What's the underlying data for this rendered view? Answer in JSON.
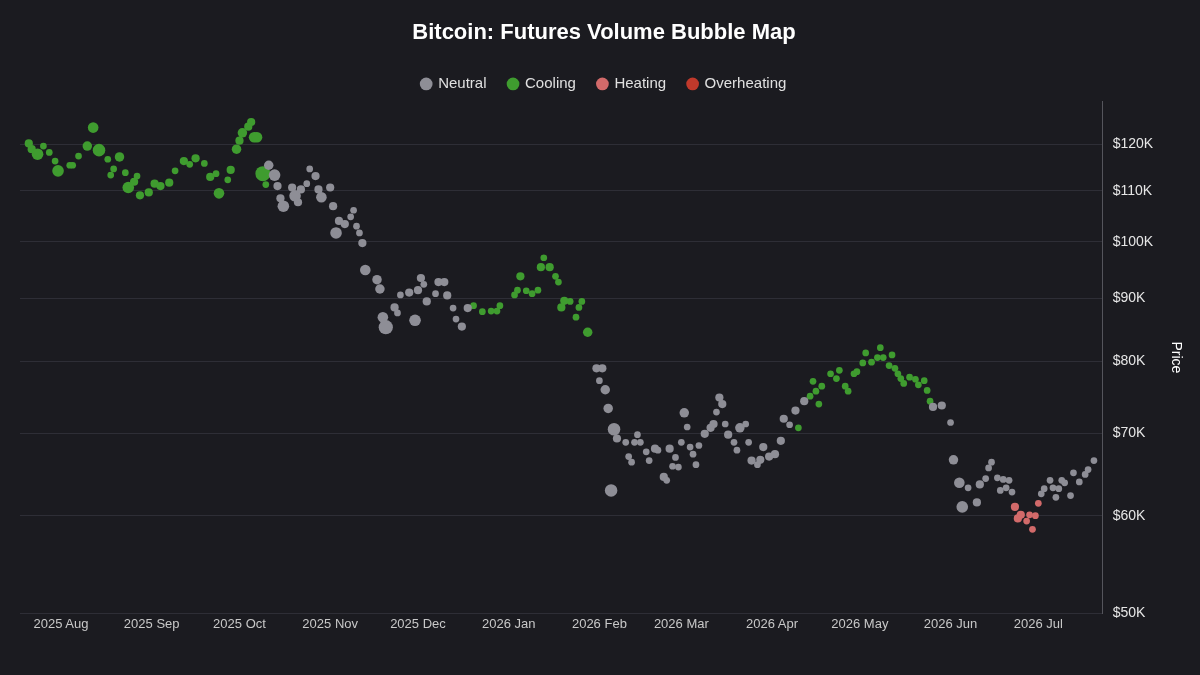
{
  "chart_data": {
    "type": "bubble",
    "title": "Bitcoin: Futures Volume Bubble Map",
    "ylabel": "Price",
    "xlim": [
      "2025-07-18",
      "2026-07-23"
    ],
    "xticks": [
      {
        "value": "2025-08-01",
        "label": "2025 Aug"
      },
      {
        "value": "2025-09-01",
        "label": "2025 Sep"
      },
      {
        "value": "2025-10-01",
        "label": "2025 Oct"
      },
      {
        "value": "2025-11-01",
        "label": "2025 Nov"
      },
      {
        "value": "2025-12-01",
        "label": "2025 Dec"
      },
      {
        "value": "2026-01-01",
        "label": "2026 Jan"
      },
      {
        "value": "2026-02-01",
        "label": "2026 Feb"
      },
      {
        "value": "2026-03-01",
        "label": "2026 Mar"
      },
      {
        "value": "2026-04-01",
        "label": "2026 Apr"
      },
      {
        "value": "2026-05-01",
        "label": "2026 May"
      },
      {
        "value": "2026-06-01",
        "label": "2026 Jun"
      },
      {
        "value": "2026-07-01",
        "label": "2026 Jul"
      }
    ],
    "ylim": [
      50000,
      130000
    ],
    "yticks": [
      {
        "value": 50000,
        "label": "$50K"
      },
      {
        "value": 60000,
        "label": "$60K"
      },
      {
        "value": 70000,
        "label": "$70K"
      },
      {
        "value": 80000,
        "label": "$80K"
      },
      {
        "value": 90000,
        "label": "$90K"
      },
      {
        "value": 100000,
        "label": "$100K"
      },
      {
        "value": 110000,
        "label": "$110K"
      },
      {
        "value": 120000,
        "label": "$120K"
      }
    ],
    "log": "y",
    "grid": "y",
    "legend": "top",
    "series": [
      {
        "name": "Neutral",
        "color": "#8e8e96",
        "x": [
          "2025-10-11",
          "2025-10-13",
          "2025-10-14",
          "2025-10-15",
          "2025-10-16",
          "2025-10-19",
          "2025-10-20",
          "2025-10-21",
          "2025-10-22",
          "2025-10-24",
          "2025-10-25",
          "2025-10-27",
          "2025-10-28",
          "2025-10-29",
          "2025-11-01",
          "2025-11-02",
          "2025-11-03",
          "2025-11-04",
          "2025-11-06",
          "2025-11-08",
          "2025-11-09",
          "2025-11-10",
          "2025-11-11",
          "2025-11-12",
          "2025-11-13",
          "2025-11-17",
          "2025-11-18",
          "2025-11-19",
          "2025-11-20",
          "2025-11-23",
          "2025-11-24",
          "2025-11-25",
          "2025-11-28",
          "2025-11-30",
          "2025-12-01",
          "2025-12-02",
          "2025-12-03",
          "2025-12-04",
          "2025-12-07",
          "2025-12-08",
          "2025-12-10",
          "2025-12-11",
          "2025-12-13",
          "2025-12-14",
          "2025-12-16",
          "2025-12-18",
          "2026-01-31",
          "2026-02-01",
          "2026-02-02",
          "2026-02-03",
          "2026-02-04",
          "2026-02-05",
          "2026-02-06",
          "2026-02-07",
          "2026-02-10",
          "2026-02-11",
          "2026-02-12",
          "2026-02-13",
          "2026-02-14",
          "2026-02-15",
          "2026-02-17",
          "2026-02-18",
          "2026-02-20",
          "2026-02-21",
          "2026-02-23",
          "2026-02-24",
          "2026-02-25",
          "2026-02-26",
          "2026-02-27",
          "2026-02-28",
          "2026-03-01",
          "2026-03-02",
          "2026-03-03",
          "2026-03-04",
          "2026-03-05",
          "2026-03-06",
          "2026-03-07",
          "2026-03-09",
          "2026-03-11",
          "2026-03-12",
          "2026-03-13",
          "2026-03-14",
          "2026-03-15",
          "2026-03-16",
          "2026-03-17",
          "2026-03-19",
          "2026-03-20",
          "2026-03-21",
          "2026-03-23",
          "2026-03-24",
          "2026-03-25",
          "2026-03-27",
          "2026-03-28",
          "2026-03-29",
          "2026-03-31",
          "2026-04-02",
          "2026-04-04",
          "2026-04-05",
          "2026-04-07",
          "2026-04-09",
          "2026-04-12",
          "2026-05-26",
          "2026-05-29",
          "2026-06-01",
          "2026-06-02",
          "2026-06-04",
          "2026-06-05",
          "2026-06-07",
          "2026-06-10",
          "2026-06-11",
          "2026-06-13",
          "2026-06-14",
          "2026-06-15",
          "2026-06-17",
          "2026-06-18",
          "2026-06-19",
          "2026-06-20",
          "2026-06-21",
          "2026-06-22",
          "2026-07-02",
          "2026-07-03",
          "2026-07-05",
          "2026-07-06",
          "2026-07-07",
          "2026-07-08",
          "2026-07-09",
          "2026-07-10",
          "2026-07-12",
          "2026-07-13",
          "2026-07-15",
          "2026-07-17",
          "2026-07-18",
          "2026-07-20"
        ],
        "values": [
          115400,
          113300,
          111000,
          108500,
          106900,
          110700,
          109000,
          107700,
          110300,
          111500,
          114600,
          113100,
          110300,
          108700,
          110700,
          106900,
          101700,
          104000,
          103400,
          104800,
          106100,
          103000,
          101700,
          99800,
          94900,
          93200,
          91600,
          86900,
          85300,
          88500,
          87600,
          90600,
          91000,
          86400,
          91400,
          93500,
          92400,
          89500,
          90800,
          92800,
          92800,
          90500,
          88400,
          86600,
          85400,
          88400,
          79000,
          77200,
          79000,
          75900,
          73300,
          62900,
          70500,
          69300,
          68800,
          67000,
          66300,
          68800,
          69800,
          68800,
          67600,
          66500,
          68000,
          67800,
          64500,
          64100,
          68000,
          65800,
          66900,
          65700,
          68800,
          72700,
          70800,
          68200,
          67300,
          66000,
          68400,
          69900,
          70700,
          71200,
          72800,
          74800,
          73900,
          71200,
          69800,
          68800,
          67800,
          70700,
          71200,
          68800,
          66500,
          66000,
          66600,
          68200,
          67000,
          67300,
          69000,
          71900,
          71100,
          73000,
          74300,
          73500,
          73700,
          71400,
          66600,
          63800,
          61000,
          63200,
          61500,
          63600,
          64300,
          65600,
          66300,
          64400,
          62900,
          64200,
          63200,
          64100,
          62700,
          62500,
          63100,
          64100,
          63200,
          62100,
          63100,
          64100,
          63800,
          62300,
          65000,
          63900,
          64800,
          65400,
          66500
        ],
        "sizes": [
          0.4,
          0.6,
          0.3,
          0.3,
          0.6,
          0.3,
          0.6,
          0.3,
          0.3,
          0.2,
          0.2,
          0.3,
          0.3,
          0.5,
          0.3,
          0.3,
          0.6,
          0.3,
          0.3,
          0.2,
          0.2,
          0.2,
          0.2,
          0.3,
          0.5,
          0.4,
          0.4,
          0.5,
          0.9,
          0.3,
          0.2,
          0.2,
          0.3,
          0.6,
          0.3,
          0.3,
          0.2,
          0.3,
          0.2,
          0.3,
          0.3,
          0.3,
          0.2,
          0.2,
          0.3,
          0.3,
          0.3,
          0.2,
          0.3,
          0.4,
          0.4,
          0.7,
          0.7,
          0.3,
          0.2,
          0.2,
          0.2,
          0.2,
          0.2,
          0.2,
          0.2,
          0.2,
          0.3,
          0.2,
          0.3,
          0.2,
          0.3,
          0.2,
          0.2,
          0.2,
          0.2,
          0.4,
          0.2,
          0.2,
          0.2,
          0.2,
          0.2,
          0.3,
          0.3,
          0.3,
          0.2,
          0.3,
          0.3,
          0.2,
          0.3,
          0.2,
          0.2,
          0.4,
          0.2,
          0.2,
          0.3,
          0.2,
          0.3,
          0.3,
          0.3,
          0.3,
          0.3,
          0.3,
          0.2,
          0.3,
          0.3,
          0.3,
          0.3,
          0.2,
          0.4,
          0.5,
          0.6,
          0.2,
          0.3,
          0.3,
          0.2,
          0.2,
          0.2,
          0.2,
          0.2,
          0.2,
          0.2,
          0.2,
          0.2,
          0.2,
          0.2,
          0.2,
          0.2,
          0.2,
          0.2,
          0.2,
          0.2,
          0.2,
          0.2,
          0.2,
          0.2,
          0.2,
          0.2
        ]
      },
      {
        "name": "Cooling",
        "color": "#3f9c2f",
        "x": [
          "2025-07-21",
          "2025-07-22",
          "2025-07-24",
          "2025-07-26",
          "2025-07-28",
          "2025-07-30",
          "2025-07-31",
          "2025-08-04",
          "2025-08-05",
          "2025-08-07",
          "2025-08-10",
          "2025-08-12",
          "2025-08-14",
          "2025-08-17",
          "2025-08-18",
          "2025-08-19",
          "2025-08-21",
          "2025-08-23",
          "2025-08-24",
          "2025-08-26",
          "2025-08-27",
          "2025-08-28",
          "2025-08-31",
          "2025-09-02",
          "2025-09-04",
          "2025-09-07",
          "2025-09-09",
          "2025-09-12",
          "2025-09-14",
          "2025-09-16",
          "2025-09-19",
          "2025-09-21",
          "2025-09-23",
          "2025-09-24",
          "2025-09-27",
          "2025-09-28",
          "2025-09-30",
          "2025-10-01",
          "2025-10-02",
          "2025-10-04",
          "2025-10-05",
          "2025-10-06",
          "2025-10-07",
          "2025-10-09",
          "2025-10-10",
          "2025-12-20",
          "2025-12-23",
          "2025-12-26",
          "2025-12-28",
          "2025-12-29",
          "2026-01-03",
          "2026-01-04",
          "2026-01-05",
          "2026-01-07",
          "2026-01-09",
          "2026-01-11",
          "2026-01-12",
          "2026-01-13",
          "2026-01-15",
          "2026-01-17",
          "2026-01-18",
          "2026-01-19",
          "2026-01-20",
          "2026-01-22",
          "2026-01-24",
          "2026-01-25",
          "2026-01-26",
          "2026-01-28",
          "2026-04-10",
          "2026-04-14",
          "2026-04-15",
          "2026-04-16",
          "2026-04-17",
          "2026-04-18",
          "2026-04-21",
          "2026-04-23",
          "2026-04-24",
          "2026-04-26",
          "2026-04-27",
          "2026-04-29",
          "2026-04-30",
          "2026-05-02",
          "2026-05-03",
          "2026-05-05",
          "2026-05-07",
          "2026-05-08",
          "2026-05-09",
          "2026-05-11",
          "2026-05-12",
          "2026-05-13",
          "2026-05-14",
          "2026-05-15",
          "2026-05-16",
          "2026-05-18",
          "2026-05-20",
          "2026-05-21",
          "2026-05-23",
          "2026-05-24",
          "2026-05-25"
        ],
        "values": [
          120200,
          118900,
          117800,
          119600,
          118200,
          116300,
          114200,
          115400,
          115400,
          117400,
          119600,
          123800,
          118700,
          116700,
          113300,
          114600,
          117200,
          113800,
          110700,
          111900,
          113100,
          109100,
          109700,
          111500,
          111000,
          111700,
          114200,
          116300,
          115600,
          116900,
          115800,
          112900,
          113600,
          109500,
          112300,
          114400,
          118900,
          120800,
          122600,
          124000,
          125100,
          121600,
          121600,
          113600,
          111300,
          88800,
          87800,
          87900,
          87900,
          88800,
          90600,
          91400,
          93800,
          91300,
          90800,
          91400,
          95400,
          97100,
          95400,
          93800,
          92800,
          88500,
          89600,
          89500,
          86900,
          88500,
          89500,
          84500,
          70700,
          75000,
          77100,
          75700,
          73900,
          76400,
          78200,
          77500,
          78700,
          76400,
          75700,
          78200,
          78500,
          79800,
          81300,
          79900,
          80600,
          82100,
          80600,
          79400,
          81000,
          79000,
          78200,
          77500,
          76800,
          77700,
          77400,
          76600,
          77200,
          75800,
          74300
        ],
        "sizes": [
          0.3,
          0.3,
          0.6,
          0.2,
          0.2,
          0.2,
          0.6,
          0.2,
          0.2,
          0.2,
          0.4,
          0.5,
          0.7,
          0.2,
          0.2,
          0.2,
          0.4,
          0.2,
          0.6,
          0.3,
          0.2,
          0.3,
          0.3,
          0.3,
          0.3,
          0.3,
          0.2,
          0.3,
          0.2,
          0.3,
          0.2,
          0.3,
          0.2,
          0.5,
          0.2,
          0.3,
          0.4,
          0.3,
          0.4,
          0.3,
          0.3,
          0.5,
          0.5,
          1,
          0.2,
          0.2,
          0.2,
          0.2,
          0.2,
          0.2,
          0.2,
          0.2,
          0.3,
          0.2,
          0.2,
          0.2,
          0.3,
          0.2,
          0.3,
          0.2,
          0.2,
          0.3,
          0.3,
          0.2,
          0.2,
          0.2,
          0.2,
          0.4,
          0.2,
          0.2,
          0.2,
          0.2,
          0.2,
          0.2,
          0.2,
          0.2,
          0.2,
          0.2,
          0.2,
          0.2,
          0.2,
          0.2,
          0.2,
          0.2,
          0.2,
          0.2,
          0.2,
          0.2,
          0.2,
          0.2,
          0.2,
          0.2,
          0.2,
          0.2,
          0.2,
          0.2,
          0.2,
          0.2,
          0.2
        ]
      },
      {
        "name": "Heating",
        "color": "#d26a6a",
        "x": [
          "2026-06-23",
          "2026-06-24",
          "2026-06-25",
          "2026-06-27",
          "2026-06-28",
          "2026-06-29",
          "2026-06-30",
          "2026-07-01"
        ],
        "values": [
          61000,
          59700,
          60100,
          59400,
          60100,
          58500,
          60000,
          61400
        ],
        "sizes": [
          0.3,
          0.3,
          0.3,
          0.2,
          0.2,
          0.2,
          0.2,
          0.2
        ]
      },
      {
        "name": "Overheating",
        "color": "#c0392b"
      }
    ]
  }
}
